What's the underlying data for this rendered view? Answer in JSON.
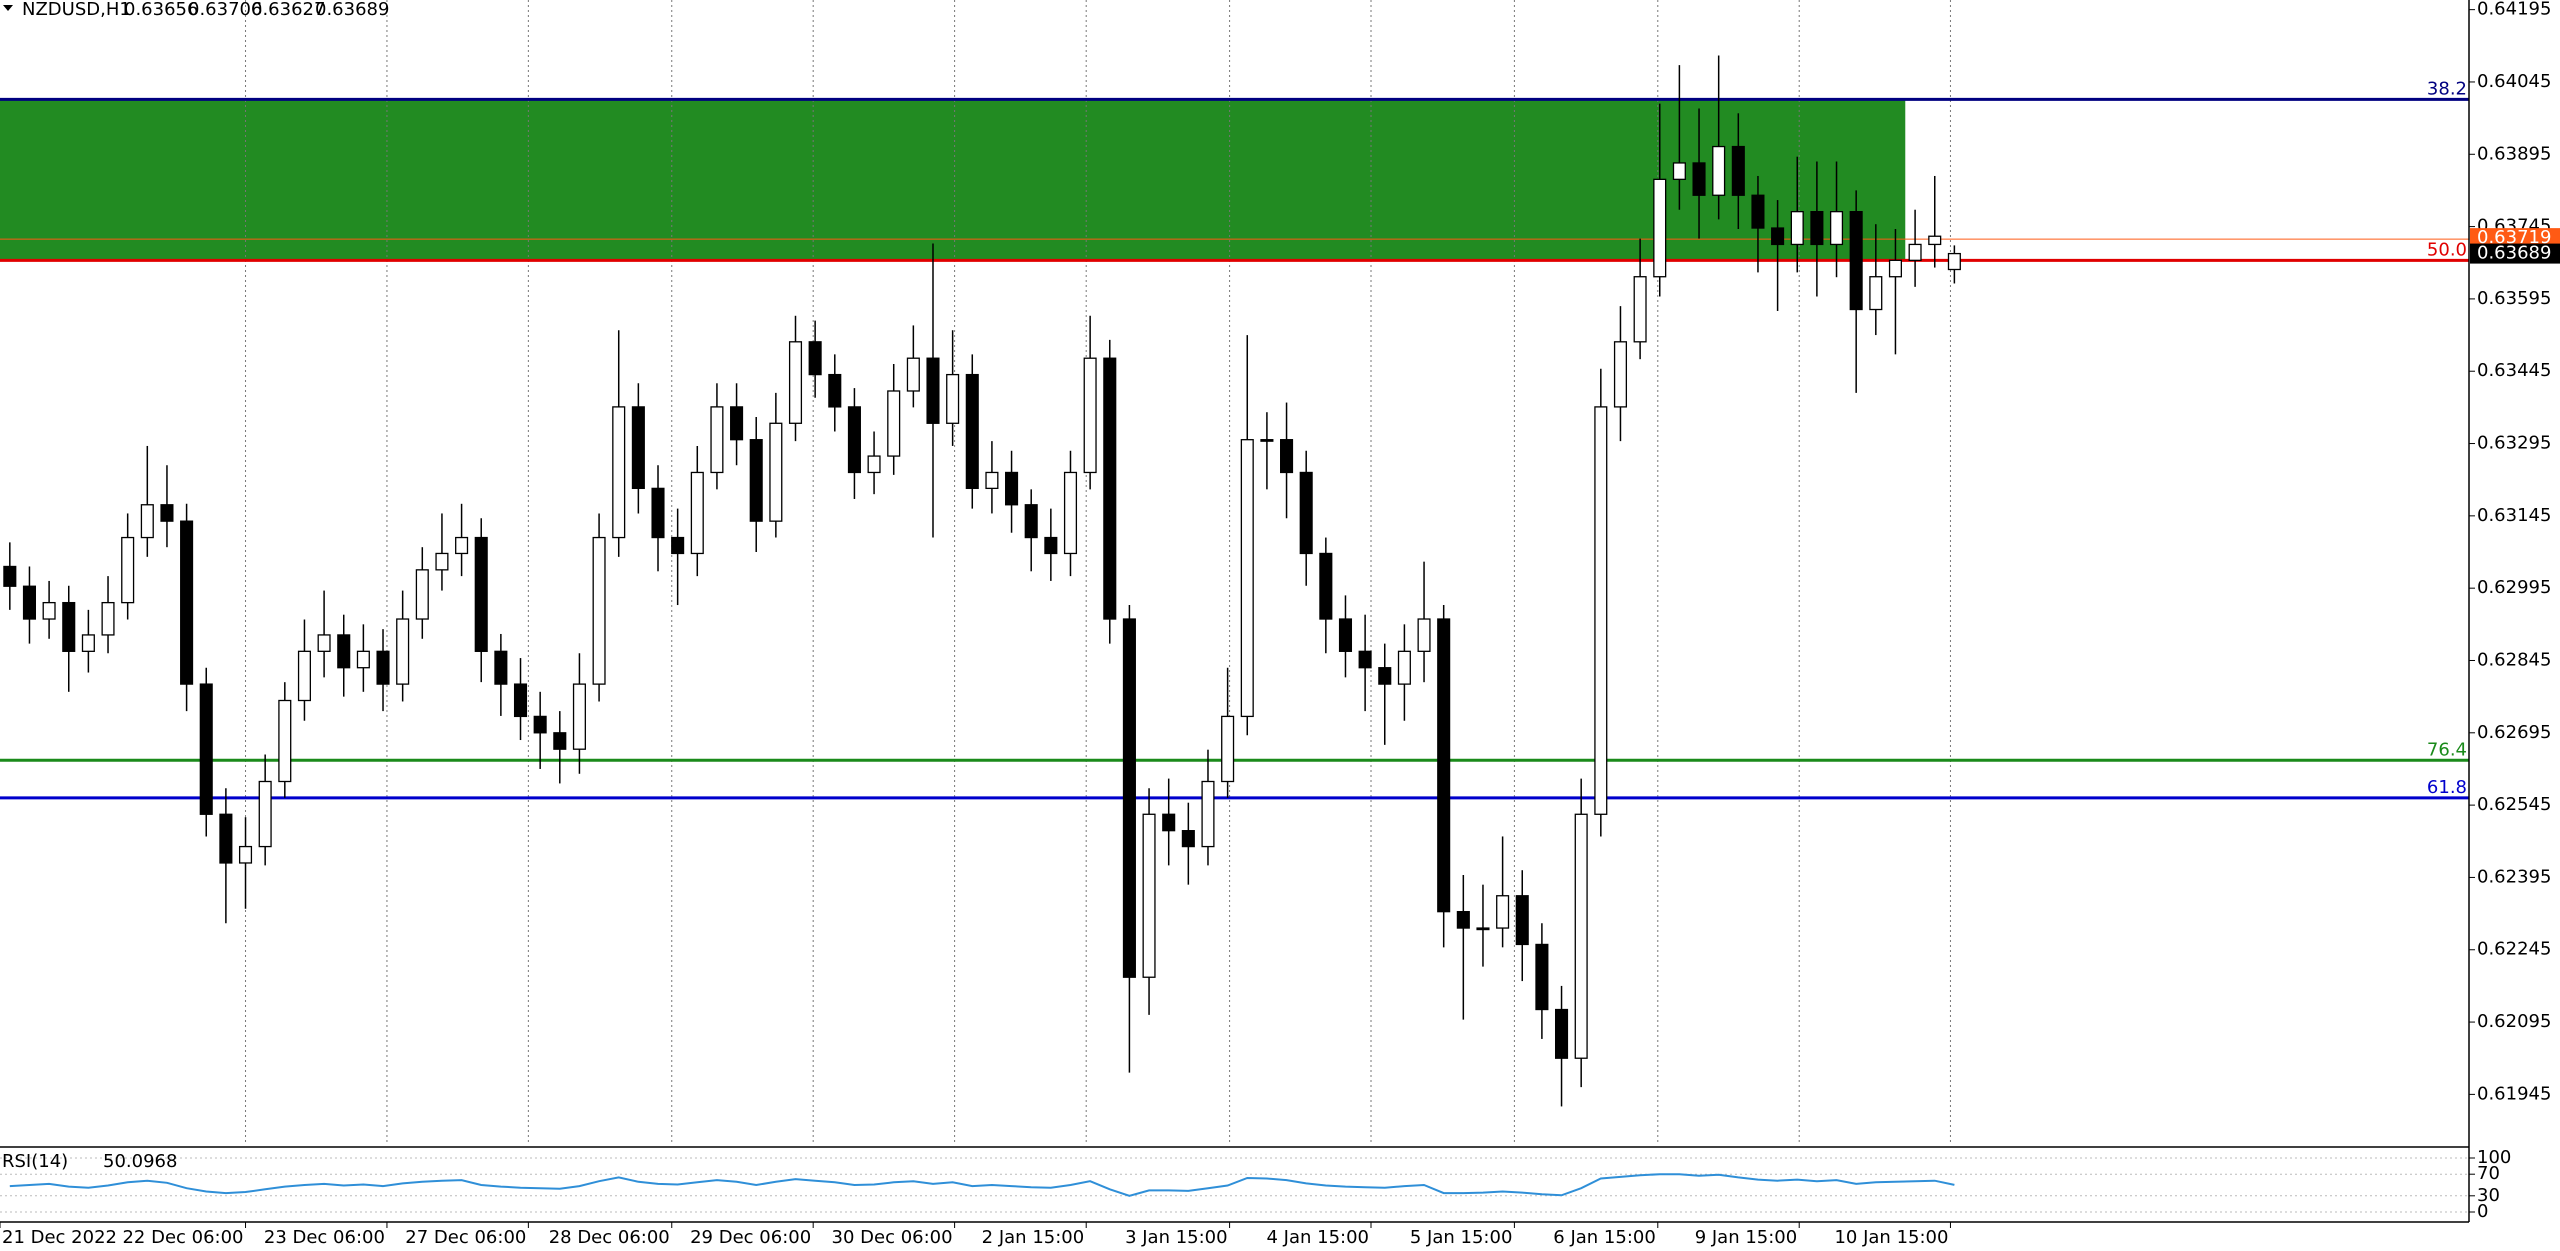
{
  "chart_data": [
    {
      "type": "candlestick",
      "title": "NZDUSD,H1",
      "open": [
        0.6304,
        0.62999,
        0.62931,
        0.62965,
        0.62864,
        0.62898,
        0.62965,
        0.631,
        0.63168,
        0.63134,
        0.62796,
        0.62526,
        0.62425,
        0.62459,
        0.62594,
        0.62762,
        0.62864,
        0.62898,
        0.6283,
        0.62864,
        0.62796,
        0.62931,
        0.63033,
        0.63067,
        0.631,
        0.62864,
        0.62796,
        0.62729,
        0.62695,
        0.62661,
        0.62796,
        0.631,
        0.63371,
        0.63202,
        0.631,
        0.63067,
        0.63235,
        0.63371,
        0.63303,
        0.63134,
        0.63337,
        0.63506,
        0.63438,
        0.63371,
        0.63235,
        0.63269,
        0.63404,
        0.63472,
        0.63337,
        0.63438,
        0.63202,
        0.63235,
        0.63168,
        0.631,
        0.63067,
        0.63235,
        0.63472,
        0.62931,
        0.62188,
        0.62526,
        0.62492,
        0.62459,
        0.62594,
        0.62729,
        0.63303,
        0.63303,
        0.63235,
        0.63067,
        0.62931,
        0.62864,
        0.6283,
        0.62796,
        0.62864,
        0.62931,
        0.62324,
        0.6229,
        0.6229,
        0.62357,
        0.62256,
        0.62121,
        0.6202,
        0.62526,
        0.63371,
        0.63506,
        0.63641,
        0.63843,
        0.63877,
        0.6381,
        0.63911,
        0.6381,
        0.63742,
        0.63708,
        0.63776,
        0.63708,
        0.63776,
        0.63573,
        0.63641,
        0.63675,
        0.63708,
        0.63656
      ],
      "high": [
        0.6309,
        0.6304,
        0.6301,
        0.63,
        0.6295,
        0.6302,
        0.6315,
        0.6329,
        0.6325,
        0.6317,
        0.6283,
        0.6258,
        0.6252,
        0.6265,
        0.628,
        0.6293,
        0.6299,
        0.6294,
        0.6292,
        0.6291,
        0.6299,
        0.6308,
        0.6315,
        0.6317,
        0.6314,
        0.629,
        0.6285,
        0.6278,
        0.6274,
        0.6286,
        0.6315,
        0.6353,
        0.6342,
        0.6325,
        0.6316,
        0.6329,
        0.6342,
        0.6342,
        0.6335,
        0.634,
        0.6356,
        0.6355,
        0.6348,
        0.6341,
        0.6332,
        0.6346,
        0.6354,
        0.6371,
        0.6353,
        0.6348,
        0.633,
        0.6328,
        0.632,
        0.6316,
        0.6328,
        0.6356,
        0.6351,
        0.6296,
        0.6258,
        0.626,
        0.6255,
        0.6266,
        0.6283,
        0.6352,
        0.6336,
        0.6338,
        0.6328,
        0.631,
        0.6298,
        0.6294,
        0.6288,
        0.6292,
        0.6305,
        0.6296,
        0.624,
        0.6238,
        0.6248,
        0.6241,
        0.623,
        0.6217,
        0.626,
        0.6345,
        0.6358,
        0.6372,
        0.64,
        0.6408,
        0.6399,
        0.641,
        0.6398,
        0.6385,
        0.638,
        0.6389,
        0.6388,
        0.6388,
        0.6382,
        0.6375,
        0.6374,
        0.6378,
        0.6385,
        0.63706
      ],
      "low": [
        0.6295,
        0.6288,
        0.6289,
        0.6278,
        0.6282,
        0.6286,
        0.6293,
        0.6306,
        0.6308,
        0.6274,
        0.6248,
        0.623,
        0.6233,
        0.6242,
        0.6256,
        0.6272,
        0.6281,
        0.6277,
        0.6278,
        0.6274,
        0.6276,
        0.6289,
        0.6299,
        0.6302,
        0.628,
        0.6273,
        0.6268,
        0.6262,
        0.6259,
        0.6261,
        0.6276,
        0.6306,
        0.6315,
        0.6303,
        0.6296,
        0.6302,
        0.632,
        0.6325,
        0.6307,
        0.631,
        0.633,
        0.6339,
        0.6332,
        0.6318,
        0.6319,
        0.6323,
        0.6337,
        0.631,
        0.6329,
        0.6316,
        0.6315,
        0.6311,
        0.6303,
        0.6301,
        0.6302,
        0.632,
        0.6288,
        0.6199,
        0.6211,
        0.6242,
        0.6238,
        0.6242,
        0.6256,
        0.6269,
        0.632,
        0.6314,
        0.63,
        0.6286,
        0.6281,
        0.6274,
        0.6267,
        0.6272,
        0.628,
        0.6225,
        0.621,
        0.6221,
        0.6225,
        0.6218,
        0.6206,
        0.6192,
        0.6196,
        0.6248,
        0.633,
        0.6347,
        0.636,
        0.6378,
        0.6372,
        0.6376,
        0.6374,
        0.6365,
        0.6357,
        0.6365,
        0.636,
        0.6364,
        0.634,
        0.6352,
        0.6348,
        0.6362,
        0.6366,
        0.63627
      ],
      "close": [
        0.62999,
        0.62931,
        0.62965,
        0.62864,
        0.62898,
        0.62965,
        0.631,
        0.63168,
        0.63134,
        0.62796,
        0.62526,
        0.62425,
        0.62459,
        0.62594,
        0.62762,
        0.62864,
        0.62898,
        0.6283,
        0.62864,
        0.62796,
        0.62931,
        0.63033,
        0.63067,
        0.631,
        0.62864,
        0.62796,
        0.62729,
        0.62695,
        0.62661,
        0.62796,
        0.631,
        0.63371,
        0.63202,
        0.631,
        0.63067,
        0.63235,
        0.63371,
        0.63303,
        0.63134,
        0.63337,
        0.63506,
        0.63438,
        0.63371,
        0.63235,
        0.63269,
        0.63404,
        0.63472,
        0.63337,
        0.63438,
        0.63202,
        0.63235,
        0.63168,
        0.631,
        0.63067,
        0.63235,
        0.63472,
        0.62931,
        0.62188,
        0.62526,
        0.62492,
        0.62459,
        0.62594,
        0.62729,
        0.63303,
        0.63303,
        0.63235,
        0.63067,
        0.62931,
        0.62864,
        0.6283,
        0.62796,
        0.62864,
        0.62931,
        0.62324,
        0.6229,
        0.6229,
        0.62357,
        0.62256,
        0.62121,
        0.6202,
        0.62526,
        0.63371,
        0.63506,
        0.63641,
        0.63843,
        0.63877,
        0.6381,
        0.63911,
        0.6381,
        0.63742,
        0.63708,
        0.63776,
        0.63708,
        0.63776,
        0.63573,
        0.63641,
        0.63675,
        0.63708,
        0.63725,
        0.63689
      ],
      "up_color": "#ffffff",
      "down_color": "#000000",
      "xlim": [
        0,
        125.7
      ],
      "ylim": [
        0.6184,
        0.64215
      ],
      "yticks": [
        0.64195,
        0.64045,
        0.63895,
        0.63745,
        0.63595,
        0.63445,
        0.63295,
        0.63145,
        0.62995,
        0.62845,
        0.62695,
        0.62545,
        0.62395,
        0.62245,
        0.62095,
        0.61945
      ],
      "xticks": [
        {
          "value": 0,
          "label": "21 Dec 2022"
        },
        {
          "value": 12.5,
          "label": "22 Dec 06:00"
        },
        {
          "value": 19.7,
          "label": "23 Dec 06:00"
        },
        {
          "value": 26.9,
          "label": "27 Dec 06:00"
        },
        {
          "value": 34.2,
          "label": "28 Dec 06:00"
        },
        {
          "value": 41.4,
          "label": "29 Dec 06:00"
        },
        {
          "value": 48.6,
          "label": "30 Dec 06:00"
        },
        {
          "value": 55.3,
          "label": "2 Jan 15:00"
        },
        {
          "value": 62.6,
          "label": "3 Jan 15:00"
        },
        {
          "value": 69.8,
          "label": "4 Jan 15:00"
        },
        {
          "value": 77.1,
          "label": "5 Jan 15:00"
        },
        {
          "value": 84.4,
          "label": "6 Jan 15:00"
        },
        {
          "value": 91.6,
          "label": "9 Jan 15:00"
        },
        {
          "value": 99.3,
          "label": "10 Jan 15:00"
        }
      ],
      "ask": 0.63719,
      "ask_color": "#ff5a14",
      "bid_color": "#000000",
      "zone": {
        "from": 0,
        "to": 97,
        "top": 0.64009,
        "bottom": 0.63675,
        "color": "#228b22"
      },
      "levels": [
        {
          "label": "38.2",
          "price": 0.64009,
          "color": "#000080"
        },
        {
          "label": "50.0",
          "price": 0.63675,
          "color": "#e00000"
        },
        {
          "label": "61.8",
          "price": 0.6256,
          "color": "#0000cc"
        },
        {
          "label": "76.4",
          "price": 0.62638,
          "color": "#1a8a1a"
        }
      ]
    },
    {
      "type": "line",
      "title": "RSI(14)",
      "color": "#2f8fd8",
      "values": [
        48,
        50,
        52,
        47,
        45,
        49,
        55,
        58,
        54,
        44,
        38,
        35,
        37,
        42,
        47,
        50,
        52,
        49,
        51,
        48,
        53,
        56,
        58,
        59,
        50,
        47,
        45,
        44,
        43,
        48,
        57,
        64,
        56,
        52,
        51,
        55,
        59,
        56,
        50,
        56,
        61,
        58,
        55,
        50,
        51,
        55,
        57,
        52,
        55,
        48,
        50,
        48,
        46,
        45,
        50,
        57,
        42,
        30,
        40,
        40,
        39,
        44,
        49,
        63,
        62,
        59,
        53,
        49,
        47,
        46,
        45,
        48,
        50,
        35,
        35,
        36,
        38,
        36,
        33,
        31,
        44,
        62,
        65,
        68,
        70,
        70,
        67,
        69,
        64,
        60,
        58,
        60,
        57,
        59,
        52,
        55,
        56,
        57,
        58,
        50.0968
      ],
      "xlim": [
        0,
        125.7
      ],
      "ylim": [
        0,
        100
      ],
      "yticks": [
        100,
        70,
        30,
        0
      ]
    }
  ]
}
